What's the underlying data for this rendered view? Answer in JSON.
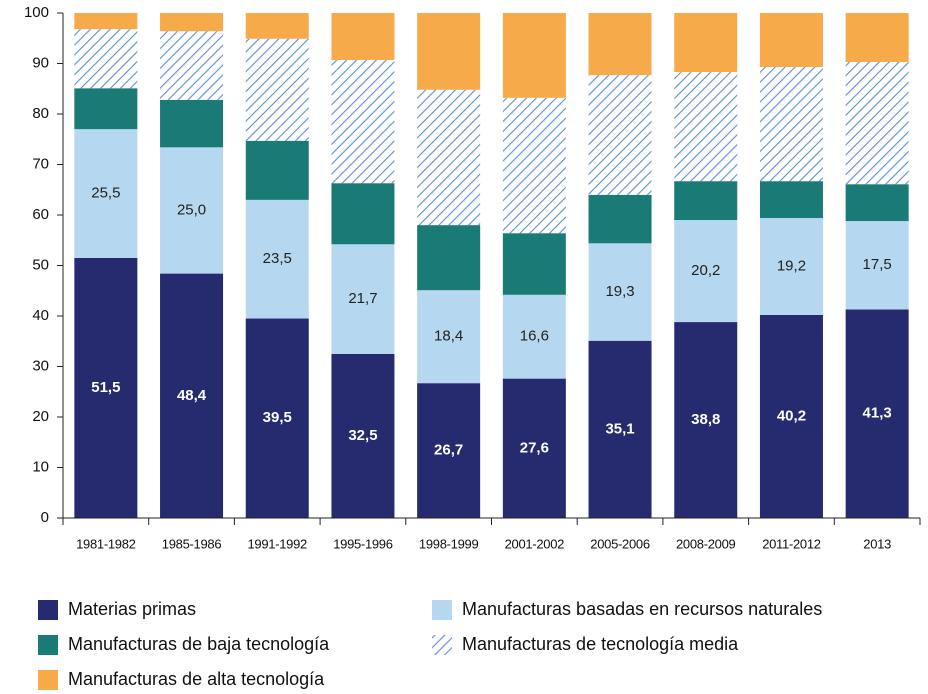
{
  "chart_data": {
    "type": "stacked_bar",
    "categories": [
      "1981-1982",
      "1985-1986",
      "1991-1992",
      "1995-1996",
      "1998-1999",
      "2001-2002",
      "2005-2006",
      "2008-2009",
      "2011-2012",
      "2013"
    ],
    "series": [
      {
        "name": "Materias primas",
        "color": "#262a6e",
        "values": [
          51.5,
          48.4,
          39.5,
          32.5,
          26.7,
          27.6,
          35.1,
          38.8,
          40.2,
          41.3
        ],
        "value_labels": [
          "51,5",
          "48,4",
          "39,5",
          "32,5",
          "26,7",
          "27,6",
          "35,1",
          "38,8",
          "40,2",
          "41,3"
        ]
      },
      {
        "name": "Manufacturas basadas en recursos naturales",
        "color": "#b5d8f0",
        "values": [
          25.5,
          25.0,
          23.5,
          21.7,
          18.4,
          16.6,
          19.3,
          20.2,
          19.2,
          17.5
        ],
        "value_labels": [
          "25,5",
          "25,0",
          "23,5",
          "21,7",
          "18,4",
          "16,6",
          "19,3",
          "20,2",
          "19,2",
          "17,5"
        ]
      },
      {
        "name": "Manufacturas de baja tecnología",
        "color": "#1a7a75",
        "values": [
          8.1,
          9.4,
          11.7,
          12.1,
          12.9,
          12.2,
          9.6,
          7.7,
          7.3,
          7.3
        ]
      },
      {
        "name": "Manufacturas de tecnología media",
        "color": "#5b8fd6",
        "hatch": true,
        "values": [
          11.7,
          13.6,
          20.2,
          24.4,
          26.8,
          26.8,
          23.7,
          21.6,
          22.6,
          24.2
        ]
      },
      {
        "name": "Manufacturas de alta tecnología",
        "color": "#f6aa4a",
        "values": [
          3.2,
          3.6,
          5.1,
          9.3,
          15.2,
          16.8,
          12.3,
          11.7,
          10.7,
          9.7
        ]
      }
    ],
    "ylim": [
      0,
      100
    ],
    "yticks": [
      0,
      10,
      20,
      30,
      40,
      50,
      60,
      70,
      80,
      90,
      100
    ],
    "legend": "bottom"
  }
}
